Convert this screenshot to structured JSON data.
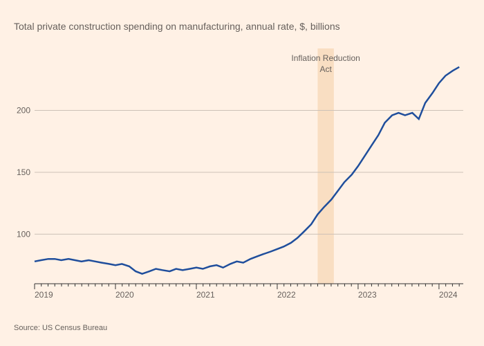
{
  "title": "Total private construction spending on manufacturing, annual rate, $, billions",
  "source": "Source: US Census Bureau",
  "chart": {
    "type": "line",
    "background_color": "#fff1e5",
    "line_color": "#1f4e9c",
    "line_width": 2.5,
    "grid_color": "#ccc1b7",
    "axis_color": "#333333",
    "label_color": "#66605c",
    "label_fontsize": 12,
    "title_fontsize": 14,
    "source_fontsize": 11,
    "xlim": [
      2019,
      2024.3
    ],
    "ylim": [
      60,
      250
    ],
    "y_ticks": [
      100,
      150,
      200
    ],
    "x_ticks": [
      2019,
      2020,
      2021,
      2022,
      2023,
      2024
    ],
    "minor_tick_count_per_year": 12,
    "annotation": {
      "label": "Inflation Reduction Act",
      "x_start": 2022.5,
      "x_end": 2022.7,
      "fill_color": "#f7d9b9",
      "fill_opacity": 0.8
    },
    "series": {
      "x": [
        2019.0,
        2019.08,
        2019.17,
        2019.25,
        2019.33,
        2019.42,
        2019.5,
        2019.58,
        2019.67,
        2019.75,
        2019.83,
        2019.92,
        2020.0,
        2020.08,
        2020.17,
        2020.25,
        2020.33,
        2020.42,
        2020.5,
        2020.58,
        2020.67,
        2020.75,
        2020.83,
        2020.92,
        2021.0,
        2021.08,
        2021.17,
        2021.25,
        2021.33,
        2021.42,
        2021.5,
        2021.58,
        2021.67,
        2021.75,
        2021.83,
        2021.92,
        2022.0,
        2022.08,
        2022.17,
        2022.25,
        2022.33,
        2022.42,
        2022.5,
        2022.58,
        2022.67,
        2022.75,
        2022.83,
        2022.92,
        2023.0,
        2023.08,
        2023.17,
        2023.25,
        2023.33,
        2023.42,
        2023.5,
        2023.58,
        2023.67,
        2023.75,
        2023.83,
        2023.92,
        2024.0,
        2024.08,
        2024.17,
        2024.25
      ],
      "y": [
        78,
        79,
        80,
        80,
        79,
        80,
        79,
        78,
        79,
        78,
        77,
        76,
        75,
        76,
        74,
        70,
        68,
        70,
        72,
        71,
        70,
        72,
        71,
        72,
        73,
        72,
        74,
        75,
        73,
        76,
        78,
        77,
        80,
        82,
        84,
        86,
        88,
        90,
        93,
        97,
        102,
        108,
        116,
        122,
        128,
        135,
        142,
        148,
        155,
        163,
        172,
        180,
        190,
        196,
        198,
        196,
        198,
        193,
        206,
        214,
        222,
        228,
        232,
        235
      ]
    }
  }
}
